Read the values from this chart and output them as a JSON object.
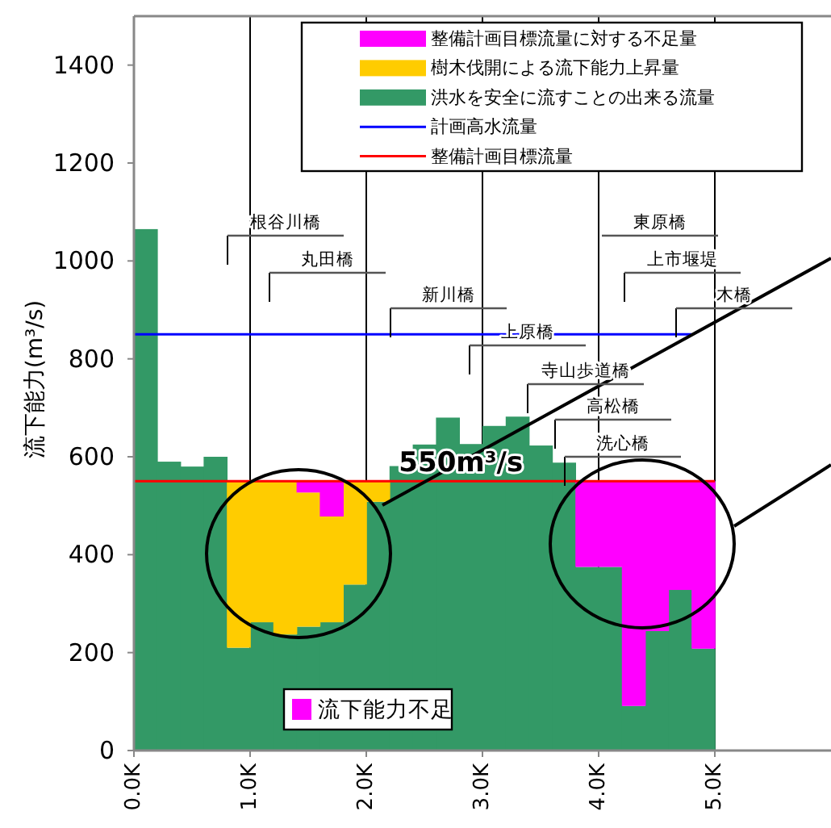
{
  "chart_data": {
    "type": "bar",
    "stacked": true,
    "ylabel": "流下能力(m³/s)",
    "x": [
      0.1,
      0.3,
      0.5,
      0.7,
      0.9,
      1.1,
      1.3,
      1.5,
      1.7,
      1.9,
      2.1,
      2.3,
      2.5,
      2.7,
      2.9,
      3.1,
      3.3,
      3.5,
      3.7,
      3.9,
      4.1,
      4.3,
      4.5,
      4.7,
      4.9
    ],
    "series": [
      {
        "name": "洪水を安全に流すことの出来る流量",
        "color": "#339966",
        "values": [
          1065,
          590,
          580,
          600,
          210,
          262,
          237,
          253,
          262,
          339,
          508,
          581,
          625,
          680,
          626,
          663,
          682,
          623,
          588,
          375,
          375,
          91,
          244,
          328,
          208
        ]
      },
      {
        "name": "樹木伐開による流下能力上昇量",
        "color": "#ffcc00",
        "values": [
          0,
          0,
          0,
          0,
          340,
          288,
          313,
          274,
          216,
          211,
          42,
          0,
          0,
          0,
          0,
          0,
          0,
          0,
          0,
          0,
          0,
          0,
          0,
          0,
          0
        ]
      },
      {
        "name": "整備計画目標流量に対する不足量",
        "color": "#ff00ff",
        "values": [
          0,
          0,
          0,
          0,
          0,
          0,
          0,
          23,
          72,
          0,
          0,
          0,
          0,
          0,
          0,
          0,
          0,
          0,
          0,
          175,
          175,
          459,
          306,
          222,
          342
        ]
      },
      {
        "name": "計画高水流量",
        "type": "line",
        "color": "#0000ff",
        "x": [
          0,
          4.8
        ],
        "values": [
          850,
          850
        ]
      },
      {
        "name": "整備計画目標流量",
        "type": "line",
        "color": "#ff0000",
        "x": [
          0,
          5.0
        ],
        "values": [
          550,
          550
        ]
      }
    ],
    "xlim": [
      0,
      6
    ],
    "ylim": [
      0,
      1500
    ],
    "xticks": [
      {
        "value": 0,
        "label": "0.0K"
      },
      {
        "value": 1,
        "label": "1.0K"
      },
      {
        "value": 2,
        "label": "2.0K"
      },
      {
        "value": 3,
        "label": "3.0K"
      },
      {
        "value": 4,
        "label": "4.0K"
      },
      {
        "value": 5,
        "label": "5.0K"
      }
    ],
    "yticks": [
      0,
      200,
      400,
      600,
      800,
      1000,
      1200,
      1400
    ],
    "grid": "x",
    "legend": "top right",
    "annotations": [
      "根谷川橋",
      "丸田橋",
      "新川橋",
      "上原橋",
      "寺山歩道橋",
      "高松橋",
      "洗心橋",
      "東原橋",
      "上市堰堤",
      "木橋",
      {
        "text": "550m³/s",
        "x": 2.28,
        "y": 550
      },
      "流下能力不足"
    ]
  }
}
